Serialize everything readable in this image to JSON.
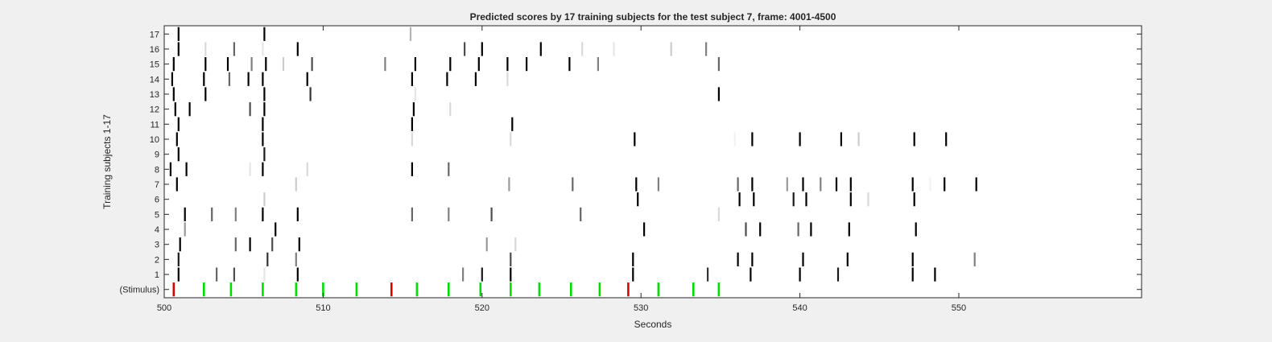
{
  "chart_data": {
    "type": "raster",
    "title": "Predicted scores by 17 training subjects for the test subject 7, frame: 4001-4500",
    "xlabel": "Seconds",
    "ylabel": "Training subjects 1-17",
    "xlim": [
      500,
      561.5
    ],
    "x_ticks": [
      500,
      510,
      520,
      530,
      540,
      550
    ],
    "y_tick_labels": [
      "(Stimulus)",
      "1",
      "2",
      "3",
      "4",
      "5",
      "6",
      "7",
      "8",
      "9",
      "10",
      "11",
      "12",
      "13",
      "14",
      "15",
      "16",
      "17"
    ],
    "grid": false,
    "stimulus_colors": {
      "green": "#00dd00",
      "red": "#dd0000"
    },
    "stimulus_events": [
      {
        "x": 500.6,
        "c": "red"
      },
      {
        "x": 502.5,
        "c": "green"
      },
      {
        "x": 504.2,
        "c": "green"
      },
      {
        "x": 506.2,
        "c": "green"
      },
      {
        "x": 508.3,
        "c": "green"
      },
      {
        "x": 510.0,
        "c": "green"
      },
      {
        "x": 512.1,
        "c": "green"
      },
      {
        "x": 514.3,
        "c": "red"
      },
      {
        "x": 515.9,
        "c": "green"
      },
      {
        "x": 517.9,
        "c": "green"
      },
      {
        "x": 519.9,
        "c": "green"
      },
      {
        "x": 521.8,
        "c": "green"
      },
      {
        "x": 523.6,
        "c": "green"
      },
      {
        "x": 525.6,
        "c": "green"
      },
      {
        "x": 527.4,
        "c": "green"
      },
      {
        "x": 529.2,
        "c": "red"
      },
      {
        "x": 531.1,
        "c": "green"
      },
      {
        "x": 533.3,
        "c": "green"
      },
      {
        "x": 534.9,
        "c": "green"
      }
    ],
    "subjects": [
      {
        "y": 1,
        "events": [
          [
            500.9,
            0.0
          ],
          [
            503.3,
            0.4
          ],
          [
            504.4,
            0.3
          ],
          [
            506.3,
            0.9
          ],
          [
            508.4,
            0.0
          ],
          [
            518.8,
            0.5
          ],
          [
            520.0,
            0.1
          ],
          [
            521.8,
            0.0
          ],
          [
            529.5,
            0.0
          ],
          [
            534.2,
            0.2
          ],
          [
            536.9,
            0.0
          ],
          [
            540.0,
            0.0
          ],
          [
            542.4,
            0.1
          ],
          [
            547.1,
            0.0
          ],
          [
            548.5,
            0.0
          ]
        ]
      },
      {
        "y": 2,
        "events": [
          [
            500.9,
            0.1
          ],
          [
            506.5,
            0.2
          ],
          [
            508.3,
            0.5
          ],
          [
            521.8,
            0.3
          ],
          [
            529.5,
            0.0
          ],
          [
            536.1,
            0.0
          ],
          [
            537.0,
            0.0
          ],
          [
            540.2,
            0.0
          ],
          [
            543.0,
            0.0
          ],
          [
            547.1,
            0.0
          ],
          [
            551.0,
            0.5
          ]
        ]
      },
      {
        "y": 3,
        "events": [
          [
            501.0,
            0.0
          ],
          [
            504.5,
            0.4
          ],
          [
            505.4,
            0.0
          ],
          [
            506.8,
            0.3
          ],
          [
            508.5,
            0.0
          ],
          [
            520.3,
            0.6
          ],
          [
            522.1,
            0.85
          ]
        ]
      },
      {
        "y": 4,
        "events": [
          [
            501.3,
            0.6
          ],
          [
            507.0,
            0.0
          ],
          [
            530.2,
            0.0
          ],
          [
            536.6,
            0.3
          ],
          [
            537.5,
            0.0
          ],
          [
            539.9,
            0.4
          ],
          [
            540.7,
            0.0
          ],
          [
            543.1,
            0.0
          ],
          [
            547.3,
            0.0
          ]
        ]
      },
      {
        "y": 5,
        "events": [
          [
            501.3,
            0.0
          ],
          [
            503.0,
            0.4
          ],
          [
            504.5,
            0.5
          ],
          [
            506.2,
            0.0
          ],
          [
            508.4,
            0.0
          ],
          [
            515.6,
            0.4
          ],
          [
            517.9,
            0.5
          ],
          [
            520.6,
            0.3
          ],
          [
            526.2,
            0.4
          ],
          [
            534.9,
            0.85
          ]
        ]
      },
      {
        "y": 6,
        "events": [
          [
            506.3,
            0.8
          ],
          [
            529.8,
            0.0
          ],
          [
            536.2,
            0.0
          ],
          [
            537.1,
            0.0
          ],
          [
            539.6,
            0.1
          ],
          [
            540.4,
            0.0
          ],
          [
            543.2,
            0.0
          ],
          [
            544.3,
            0.85
          ],
          [
            547.2,
            0.0
          ]
        ]
      },
      {
        "y": 7,
        "events": [
          [
            500.8,
            0.0
          ],
          [
            508.3,
            0.8
          ],
          [
            521.7,
            0.6
          ],
          [
            525.7,
            0.4
          ],
          [
            529.7,
            0.0
          ],
          [
            531.1,
            0.5
          ],
          [
            536.1,
            0.4
          ],
          [
            537.0,
            0.0
          ],
          [
            539.2,
            0.6
          ],
          [
            540.2,
            0.0
          ],
          [
            541.3,
            0.5
          ],
          [
            542.3,
            0.0
          ],
          [
            543.2,
            0.0
          ],
          [
            547.1,
            0.0
          ],
          [
            548.2,
            0.95
          ],
          [
            549.1,
            0.0
          ],
          [
            551.1,
            0.0
          ]
        ]
      },
      {
        "y": 8,
        "events": [
          [
            500.4,
            0.0
          ],
          [
            501.4,
            0.0
          ],
          [
            505.4,
            0.9
          ],
          [
            506.2,
            0.0
          ],
          [
            509.0,
            0.85
          ],
          [
            515.6,
            0.0
          ],
          [
            517.9,
            0.4
          ]
        ]
      },
      {
        "y": 9,
        "events": [
          [
            500.9,
            0.0
          ],
          [
            506.3,
            0.1
          ]
        ]
      },
      {
        "y": 10,
        "events": [
          [
            500.8,
            0.0
          ],
          [
            506.2,
            0.0
          ],
          [
            515.6,
            0.85
          ],
          [
            521.8,
            0.85
          ],
          [
            529.6,
            0.0
          ],
          [
            535.9,
            0.95
          ],
          [
            537.0,
            0.0
          ],
          [
            540.0,
            0.0
          ],
          [
            542.6,
            0.0
          ],
          [
            543.7,
            0.8
          ],
          [
            547.2,
            0.0
          ],
          [
            549.2,
            0.0
          ]
        ]
      },
      {
        "y": 11,
        "events": [
          [
            500.9,
            0.0
          ],
          [
            506.2,
            0.0
          ],
          [
            515.6,
            0.0
          ],
          [
            521.9,
            0.0
          ]
        ]
      },
      {
        "y": 12,
        "events": [
          [
            500.7,
            0.0
          ],
          [
            501.6,
            0.0
          ],
          [
            505.4,
            0.3
          ],
          [
            506.3,
            0.0
          ],
          [
            515.7,
            0.0
          ],
          [
            518.0,
            0.85
          ]
        ]
      },
      {
        "y": 13,
        "events": [
          [
            500.6,
            0.0
          ],
          [
            502.6,
            0.0
          ],
          [
            506.3,
            0.0
          ],
          [
            509.2,
            0.2
          ],
          [
            515.8,
            0.9
          ],
          [
            534.9,
            0.0
          ]
        ]
      },
      {
        "y": 14,
        "events": [
          [
            500.5,
            0.0
          ],
          [
            502.5,
            0.0
          ],
          [
            504.1,
            0.4
          ],
          [
            505.3,
            0.0
          ],
          [
            506.2,
            0.0
          ],
          [
            509.0,
            0.0
          ],
          [
            515.6,
            0.0
          ],
          [
            517.8,
            0.0
          ],
          [
            519.6,
            0.0
          ],
          [
            521.6,
            0.85
          ]
        ]
      },
      {
        "y": 15,
        "events": [
          [
            500.6,
            0.0
          ],
          [
            502.6,
            0.0
          ],
          [
            504.0,
            0.0
          ],
          [
            505.5,
            0.5
          ],
          [
            506.4,
            0.0
          ],
          [
            507.5,
            0.8
          ],
          [
            509.3,
            0.3
          ],
          [
            513.9,
            0.5
          ],
          [
            515.8,
            0.0
          ],
          [
            518.0,
            0.0
          ],
          [
            519.8,
            0.0
          ],
          [
            521.6,
            0.0
          ],
          [
            522.8,
            0.0
          ],
          [
            525.5,
            0.0
          ],
          [
            527.3,
            0.5
          ],
          [
            534.9,
            0.4
          ]
        ]
      },
      {
        "y": 16,
        "events": [
          [
            500.9,
            0.0
          ],
          [
            502.6,
            0.85
          ],
          [
            504.4,
            0.4
          ],
          [
            506.2,
            0.9
          ],
          [
            508.4,
            0.0
          ],
          [
            518.9,
            0.3
          ],
          [
            520.0,
            0.0
          ],
          [
            523.7,
            0.0
          ],
          [
            526.3,
            0.85
          ],
          [
            528.3,
            0.9
          ],
          [
            531.9,
            0.8
          ],
          [
            534.1,
            0.5
          ]
        ]
      },
      {
        "y": 17,
        "events": [
          [
            500.9,
            0.0
          ],
          [
            506.3,
            0.0
          ],
          [
            515.5,
            0.7
          ]
        ]
      }
    ]
  }
}
